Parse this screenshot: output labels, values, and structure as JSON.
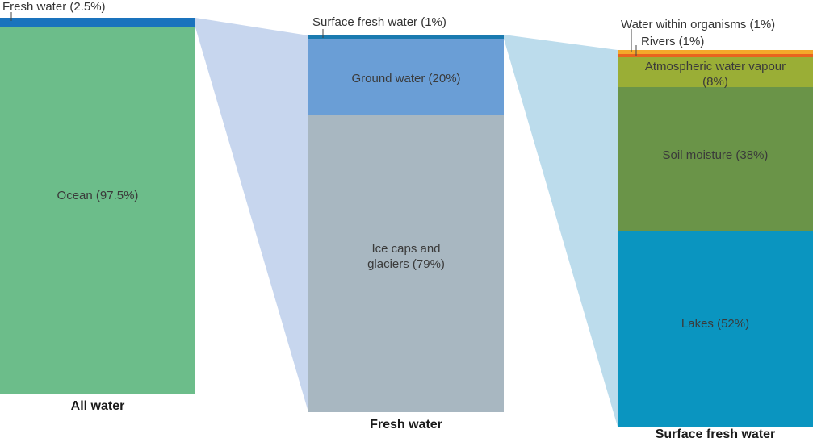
{
  "colors": {
    "ocean": "#6cbd8a",
    "fresh_water_strip": "#1a73bd",
    "connector_1": "#c7d6ee",
    "surface_strip": "#1a7ab0",
    "ground_water": "#6a9ed6",
    "ice_caps": "#a8b7c1",
    "connector_2": "#bcdcec",
    "organisms": "#f4a82a",
    "rivers": "#e8641e",
    "atmospheric": "#9aae36",
    "soil": "#6a9448",
    "lakes": "#0a95c0",
    "leader": "#444444"
  },
  "columns": [
    {
      "title": "All water",
      "segments": [
        {
          "label": "Fresh water (2.5%)",
          "value": 2.5,
          "color_key": "fresh_water_strip"
        },
        {
          "label": "Ocean (97.5%)",
          "value": 97.5,
          "color_key": "ocean"
        }
      ]
    },
    {
      "title": "Fresh water",
      "segments": [
        {
          "label": "Surface fresh water (1%)",
          "value": 1,
          "color_key": "surface_strip"
        },
        {
          "label": "Ground water (20%)",
          "value": 20,
          "color_key": "ground_water"
        },
        {
          "label_lines": [
            "Ice caps and",
            "glaciers (79%)"
          ],
          "value": 79,
          "color_key": "ice_caps"
        }
      ]
    },
    {
      "title": "Surface fresh water",
      "segments": [
        {
          "label": "Water within organisms (1%)",
          "value": 1,
          "color_key": "organisms"
        },
        {
          "label": "Rivers (1%)",
          "value": 1,
          "color_key": "rivers"
        },
        {
          "label_lines": [
            "Atmospheric water vapour",
            "(8%)"
          ],
          "value": 8,
          "color_key": "atmospheric"
        },
        {
          "label": "Soil moisture (38%)",
          "value": 38,
          "color_key": "soil"
        },
        {
          "label": "Lakes (52%)",
          "value": 52,
          "color_key": "lakes"
        }
      ]
    }
  ]
}
